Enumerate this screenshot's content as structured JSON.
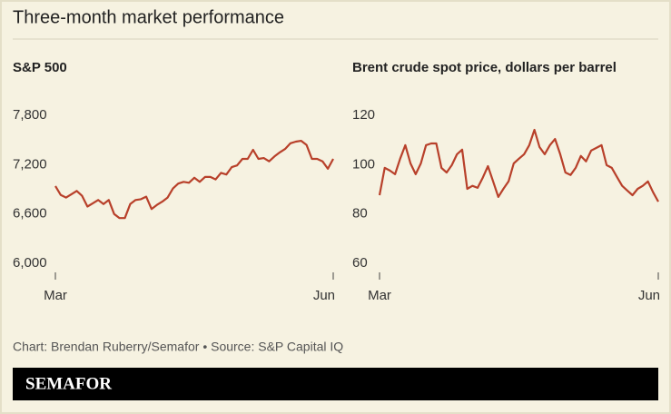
{
  "title": "Three-month market performance",
  "source": "Chart: Brendan Ruberry/Semafor • Source: S&P Capital IQ",
  "brand": "SEMAFOR",
  "chart_data": [
    {
      "type": "line",
      "title": "S&P 500",
      "categories": [
        "Mar",
        null,
        null,
        null,
        null,
        null,
        null,
        null,
        null,
        null,
        null,
        null,
        null,
        null,
        null,
        null,
        null,
        null,
        null,
        null,
        null,
        null,
        null,
        null,
        null,
        null,
        null,
        null,
        null,
        null,
        null,
        null,
        null,
        null,
        null,
        null,
        null,
        null,
        null,
        null,
        null,
        null,
        null,
        null,
        null,
        null,
        null,
        null,
        null,
        null,
        null,
        null,
        "Jun"
      ],
      "series": [
        {
          "name": "S&P 500",
          "color": "#b8402a",
          "values": [
            6940,
            6830,
            6800,
            6840,
            6880,
            6820,
            6690,
            6730,
            6770,
            6720,
            6770,
            6600,
            6550,
            6550,
            6720,
            6770,
            6780,
            6810,
            6660,
            6710,
            6750,
            6800,
            6910,
            6970,
            6990,
            6980,
            7040,
            6990,
            7050,
            7050,
            7020,
            7100,
            7080,
            7170,
            7190,
            7270,
            7270,
            7380,
            7270,
            7280,
            7240,
            7300,
            7350,
            7390,
            7460,
            7480,
            7490,
            7440,
            7270,
            7270,
            7240,
            7150,
            7270
          ]
        }
      ],
      "ylim": [
        6000,
        7800
      ],
      "yticks": [
        {
          "value": 6000,
          "label": "6,000"
        },
        {
          "value": 6600,
          "label": "6,600"
        },
        {
          "value": 7200,
          "label": "7,200"
        },
        {
          "value": 7800,
          "label": "7,800"
        }
      ]
    },
    {
      "type": "line",
      "title": "Brent crude spot price, dollars per barrel",
      "categories": [
        "Mar",
        null,
        null,
        null,
        null,
        null,
        null,
        null,
        null,
        null,
        null,
        null,
        null,
        null,
        null,
        null,
        null,
        null,
        null,
        null,
        null,
        null,
        null,
        null,
        null,
        null,
        null,
        null,
        null,
        null,
        null,
        null,
        null,
        null,
        null,
        null,
        null,
        null,
        null,
        null,
        null,
        null,
        null,
        null,
        null,
        null,
        null,
        null,
        null,
        null,
        null,
        null,
        null,
        null,
        "Jun"
      ],
      "series": [
        {
          "name": "Brent crude",
          "color": "#b8402a",
          "values": [
            87.6,
            98.7,
            97.6,
            96.1,
            102.4,
            107.9,
            100.5,
            96.1,
            100.5,
            107.9,
            108.6,
            108.6,
            98.7,
            96.8,
            99.8,
            104.2,
            106.1,
            90.2,
            91.4,
            90.6,
            94.7,
            99.4,
            93.2,
            86.9,
            90.2,
            93.2,
            100.5,
            102.4,
            104.2,
            107.9,
            114.1,
            107.1,
            104.2,
            107.9,
            110.4,
            104.2,
            96.8,
            95.8,
            98.7,
            103.5,
            101.3,
            105.7,
            106.8,
            107.9,
            99.8,
            98.7,
            95.0,
            91.4,
            89.5,
            87.6,
            90.2,
            91.4,
            93.2,
            88.8,
            85.0
          ]
        }
      ],
      "ylim": [
        60,
        120
      ],
      "yticks": [
        60,
        80,
        100,
        120
      ]
    }
  ]
}
